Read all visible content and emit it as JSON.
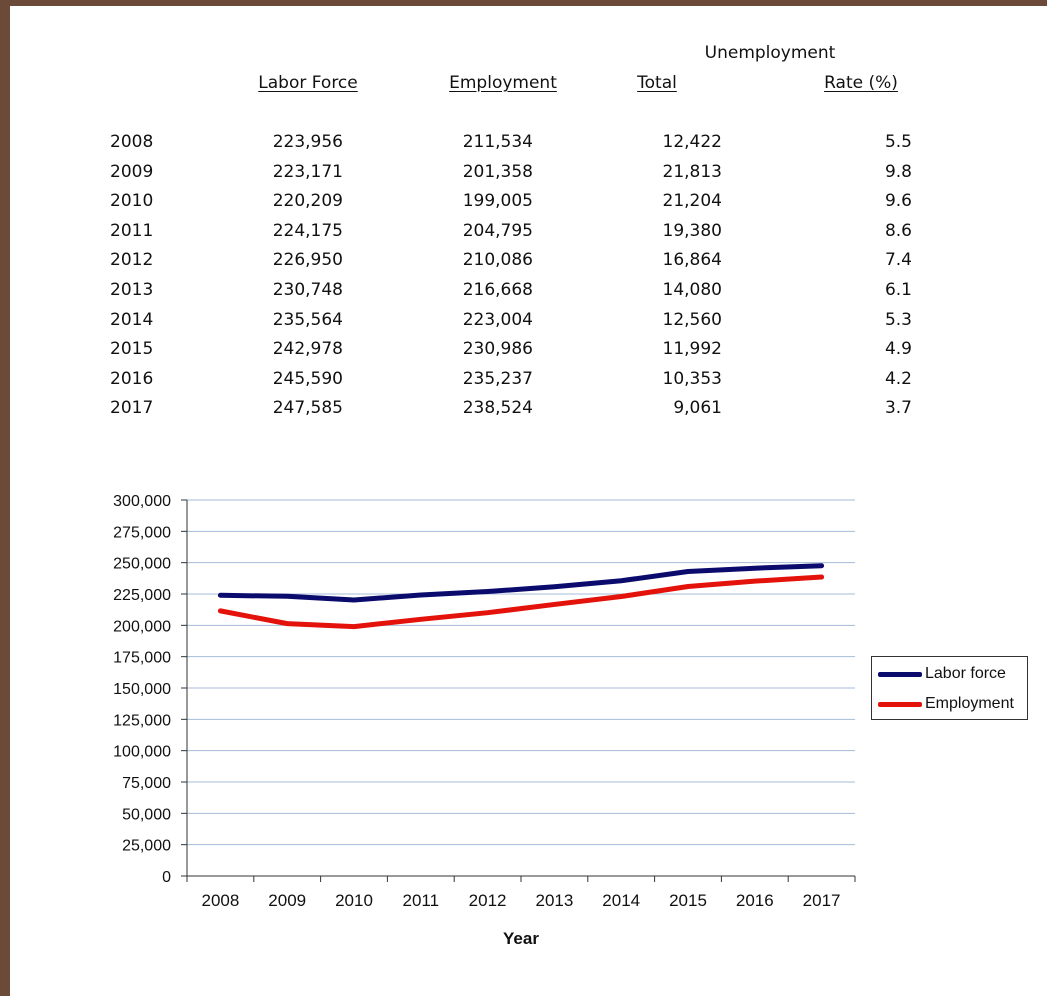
{
  "table": {
    "group_header": "Unemployment",
    "headers": {
      "labor_force": "Labor Force",
      "employment": "Employment",
      "total": "Total",
      "rate": "Rate (%)"
    },
    "rows": [
      {
        "year": "2008",
        "labor_force": "223,956",
        "employment": "211,534",
        "total": "12,422",
        "rate": "5.5"
      },
      {
        "year": "2009",
        "labor_force": "223,171",
        "employment": "201,358",
        "total": "21,813",
        "rate": "9.8"
      },
      {
        "year": "2010",
        "labor_force": "220,209",
        "employment": "199,005",
        "total": "21,204",
        "rate": "9.6"
      },
      {
        "year": "2011",
        "labor_force": "224,175",
        "employment": "204,795",
        "total": "19,380",
        "rate": "8.6"
      },
      {
        "year": "2012",
        "labor_force": "226,950",
        "employment": "210,086",
        "total": "16,864",
        "rate": "7.4"
      },
      {
        "year": "2013",
        "labor_force": "230,748",
        "employment": "216,668",
        "total": "14,080",
        "rate": "6.1"
      },
      {
        "year": "2014",
        "labor_force": "235,564",
        "employment": "223,004",
        "total": "12,560",
        "rate": "5.3"
      },
      {
        "year": "2015",
        "labor_force": "242,978",
        "employment": "230,986",
        "total": "11,992",
        "rate": "4.9"
      },
      {
        "year": "2016",
        "labor_force": "245,590",
        "employment": "235,237",
        "total": "10,353",
        "rate": "4.2"
      },
      {
        "year": "2017",
        "labor_force": "247,585",
        "employment": "238,524",
        "total": "9,061",
        "rate": "3.7"
      }
    ]
  },
  "chart_data": {
    "type": "line",
    "title": "",
    "xlabel": "Year",
    "ylabel": "",
    "categories": [
      "2008",
      "2009",
      "2010",
      "2011",
      "2012",
      "2013",
      "2014",
      "2015",
      "2016",
      "2017"
    ],
    "ylim": [
      0,
      300000
    ],
    "yticks": [
      0,
      25000,
      50000,
      75000,
      100000,
      125000,
      150000,
      175000,
      200000,
      225000,
      250000,
      275000,
      300000
    ],
    "ytick_labels": [
      "0",
      "25,000",
      "50,000",
      "75,000",
      "100,000",
      "125,000",
      "150,000",
      "175,000",
      "200,000",
      "225,000",
      "250,000",
      "275,000",
      "300,000"
    ],
    "grid": true,
    "legend_position": "right",
    "series": [
      {
        "name": "Labor force",
        "color": "#0b0b6e",
        "values": [
          223956,
          223171,
          220209,
          224175,
          226950,
          230748,
          235564,
          242978,
          245590,
          247585
        ]
      },
      {
        "name": "Employment",
        "color": "#e3120b",
        "values": [
          211534,
          201358,
          199005,
          204795,
          210086,
          216668,
          223004,
          230986,
          235237,
          238524
        ]
      }
    ],
    "gridline_color": "#a6bcd8"
  }
}
